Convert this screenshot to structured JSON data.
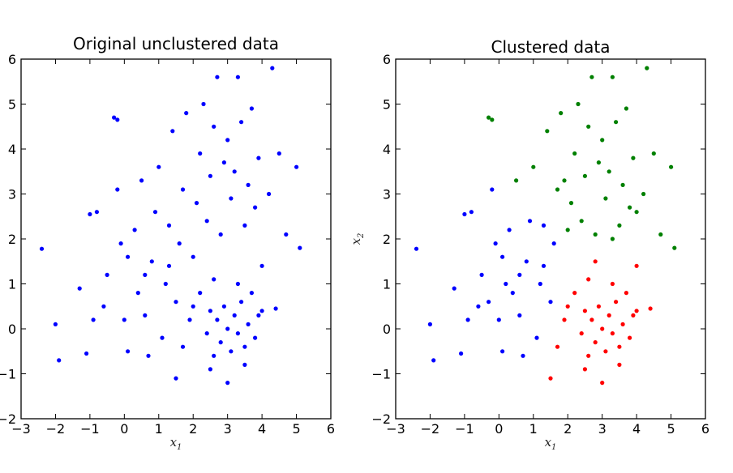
{
  "chart_data": [
    {
      "type": "scatter",
      "title": "Original unclustered data",
      "xlabel": "x",
      "xlabel_subscript": "1",
      "ylabel": "",
      "ylabel_subscript": "",
      "xlim": [
        -3,
        6
      ],
      "ylim": [
        -2,
        6
      ],
      "xticks": [
        "−3",
        "−2",
        "−1",
        "0",
        "1",
        "2",
        "3",
        "4",
        "5",
        "6"
      ],
      "yticks": [
        "−2",
        "−1",
        "0",
        "1",
        "2",
        "3",
        "4",
        "5",
        "6"
      ],
      "grid": false,
      "series": [
        {
          "color": "#0000ff",
          "points": [
            [
              -2.4,
              1.78
            ],
            [
              -2.0,
              0.1
            ],
            [
              -1.9,
              -0.7
            ],
            [
              -1.1,
              -0.55
            ],
            [
              -1.0,
              2.55
            ],
            [
              -0.8,
              2.6
            ],
            [
              -0.3,
              4.7
            ],
            [
              -0.2,
              4.65
            ],
            [
              -0.2,
              3.1
            ],
            [
              -0.6,
              0.5
            ],
            [
              -1.3,
              0.9
            ],
            [
              -0.9,
              0.2
            ],
            [
              -0.1,
              1.9
            ],
            [
              0.1,
              1.6
            ],
            [
              0.3,
              2.2
            ],
            [
              0.5,
              3.3
            ],
            [
              0.4,
              0.8
            ],
            [
              0.6,
              0.3
            ],
            [
              0.8,
              1.5
            ],
            [
              0.9,
              2.6
            ],
            [
              1.0,
              3.6
            ],
            [
              1.2,
              1.0
            ],
            [
              1.3,
              2.3
            ],
            [
              1.4,
              4.4
            ],
            [
              1.5,
              0.6
            ],
            [
              1.6,
              1.9
            ],
            [
              1.7,
              3.1
            ],
            [
              1.8,
              4.8
            ],
            [
              1.9,
              0.2
            ],
            [
              2.0,
              1.6
            ],
            [
              2.1,
              2.8
            ],
            [
              2.2,
              3.9
            ],
            [
              2.3,
              5.0
            ],
            [
              2.4,
              2.4
            ],
            [
              2.5,
              3.4
            ],
            [
              2.6,
              4.5
            ],
            [
              2.7,
              5.6
            ],
            [
              2.8,
              2.1
            ],
            [
              2.9,
              3.7
            ],
            [
              3.0,
              4.2
            ],
            [
              3.1,
              2.9
            ],
            [
              3.2,
              3.5
            ],
            [
              3.3,
              5.6
            ],
            [
              3.4,
              4.6
            ],
            [
              3.5,
              2.3
            ],
            [
              3.6,
              3.2
            ],
            [
              3.7,
              4.9
            ],
            [
              3.8,
              2.7
            ],
            [
              3.9,
              3.8
            ],
            [
              4.0,
              1.4
            ],
            [
              4.2,
              3.0
            ],
            [
              4.3,
              5.8
            ],
            [
              4.5,
              3.9
            ],
            [
              4.7,
              2.1
            ],
            [
              5.0,
              3.6
            ],
            [
              5.1,
              1.8
            ],
            [
              1.5,
              -1.1
            ],
            [
              2.5,
              -0.9
            ],
            [
              3.0,
              -1.2
            ],
            [
              3.5,
              -0.8
            ],
            [
              4.0,
              0.4
            ],
            [
              4.4,
              0.45
            ],
            [
              0.1,
              -0.5
            ],
            [
              0.7,
              -0.6
            ],
            [
              1.1,
              -0.2
            ],
            [
              1.7,
              -0.4
            ],
            [
              -0.5,
              1.2
            ],
            [
              0.0,
              0.2
            ],
            [
              0.6,
              1.2
            ],
            [
              1.3,
              1.4
            ],
            [
              2.0,
              0.5
            ],
            [
              2.6,
              1.1
            ],
            [
              2.7,
              0.2
            ],
            [
              2.8,
              -0.3
            ],
            [
              2.9,
              0.5
            ],
            [
              3.0,
              0.0
            ],
            [
              3.1,
              -0.5
            ],
            [
              3.2,
              0.3
            ],
            [
              3.3,
              -0.1
            ],
            [
              3.4,
              0.6
            ],
            [
              3.5,
              -0.4
            ],
            [
              3.6,
              0.1
            ],
            [
              3.7,
              0.8
            ],
            [
              3.8,
              -0.2
            ],
            [
              2.4,
              -0.1
            ],
            [
              2.5,
              0.4
            ],
            [
              2.6,
              -0.6
            ],
            [
              3.9,
              0.3
            ],
            [
              2.2,
              0.8
            ],
            [
              3.3,
              1.0
            ]
          ]
        }
      ]
    },
    {
      "type": "scatter",
      "title": "Clustered data",
      "xlabel": "x",
      "xlabel_subscript": "1",
      "ylabel": "x",
      "ylabel_subscript": "2",
      "xlim": [
        -3,
        6
      ],
      "ylim": [
        -2,
        6
      ],
      "xticks": [
        "−3",
        "−2",
        "−1",
        "0",
        "1",
        "2",
        "3",
        "4",
        "5",
        "6"
      ],
      "yticks": [
        "−2",
        "−1",
        "0",
        "1",
        "2",
        "3",
        "4",
        "5",
        "6"
      ],
      "grid": false,
      "series": [
        {
          "color": "#0000ff",
          "points": [
            [
              -2.4,
              1.78
            ],
            [
              -2.0,
              0.1
            ],
            [
              -1.9,
              -0.7
            ],
            [
              -1.1,
              -0.55
            ],
            [
              -1.0,
              2.55
            ],
            [
              -0.8,
              2.6
            ],
            [
              -0.2,
              3.1
            ],
            [
              -0.6,
              0.5
            ],
            [
              -1.3,
              0.9
            ],
            [
              -0.9,
              0.2
            ],
            [
              -0.1,
              1.9
            ],
            [
              0.1,
              1.6
            ],
            [
              0.3,
              2.2
            ],
            [
              0.4,
              0.8
            ],
            [
              0.6,
              0.3
            ],
            [
              0.8,
              1.5
            ],
            [
              1.2,
              1.0
            ],
            [
              1.3,
              2.3
            ],
            [
              1.5,
              0.6
            ],
            [
              1.6,
              1.9
            ],
            [
              0.1,
              -0.5
            ],
            [
              0.7,
              -0.6
            ],
            [
              1.1,
              -0.2
            ],
            [
              -0.5,
              1.2
            ],
            [
              0.0,
              0.2
            ],
            [
              0.6,
              1.2
            ],
            [
              1.3,
              1.4
            ],
            [
              0.9,
              2.4
            ],
            [
              0.2,
              1.0
            ],
            [
              -0.3,
              0.6
            ]
          ]
        },
        {
          "color": "#008000",
          "points": [
            [
              -0.3,
              4.7
            ],
            [
              -0.2,
              4.65
            ],
            [
              0.5,
              3.3
            ],
            [
              1.0,
              3.6
            ],
            [
              1.4,
              4.4
            ],
            [
              1.7,
              3.1
            ],
            [
              1.8,
              4.8
            ],
            [
              2.1,
              2.8
            ],
            [
              2.2,
              3.9
            ],
            [
              2.3,
              5.0
            ],
            [
              2.4,
              2.4
            ],
            [
              2.5,
              3.4
            ],
            [
              2.6,
              4.5
            ],
            [
              2.7,
              5.6
            ],
            [
              2.8,
              2.1
            ],
            [
              2.9,
              3.7
            ],
            [
              3.0,
              4.2
            ],
            [
              3.1,
              2.9
            ],
            [
              3.2,
              3.5
            ],
            [
              3.3,
              5.6
            ],
            [
              3.4,
              4.6
            ],
            [
              3.5,
              2.3
            ],
            [
              3.6,
              3.2
            ],
            [
              3.7,
              4.9
            ],
            [
              3.8,
              2.7
            ],
            [
              3.9,
              3.8
            ],
            [
              4.2,
              3.0
            ],
            [
              4.3,
              5.8
            ],
            [
              4.5,
              3.9
            ],
            [
              4.7,
              2.1
            ],
            [
              5.0,
              3.6
            ],
            [
              5.1,
              1.8
            ],
            [
              2.0,
              2.2
            ],
            [
              1.9,
              3.3
            ],
            [
              3.3,
              2.0
            ],
            [
              4.0,
              2.6
            ]
          ]
        },
        {
          "color": "#ff0000",
          "points": [
            [
              1.5,
              -1.1
            ],
            [
              2.5,
              -0.9
            ],
            [
              3.0,
              -1.2
            ],
            [
              3.5,
              -0.8
            ],
            [
              4.0,
              0.4
            ],
            [
              4.4,
              0.45
            ],
            [
              1.7,
              -0.4
            ],
            [
              1.9,
              0.2
            ],
            [
              2.0,
              0.5
            ],
            [
              2.6,
              1.1
            ],
            [
              2.7,
              0.2
            ],
            [
              2.8,
              -0.3
            ],
            [
              2.9,
              0.5
            ],
            [
              3.0,
              0.0
            ],
            [
              3.1,
              -0.5
            ],
            [
              3.2,
              0.3
            ],
            [
              3.3,
              -0.1
            ],
            [
              3.4,
              0.6
            ],
            [
              3.5,
              -0.4
            ],
            [
              3.6,
              0.1
            ],
            [
              3.7,
              0.8
            ],
            [
              3.8,
              -0.2
            ],
            [
              2.4,
              -0.1
            ],
            [
              2.5,
              0.4
            ],
            [
              2.6,
              -0.6
            ],
            [
              3.9,
              0.3
            ],
            [
              2.2,
              0.8
            ],
            [
              3.3,
              1.0
            ],
            [
              4.0,
              1.4
            ],
            [
              2.8,
              1.5
            ]
          ]
        }
      ]
    }
  ]
}
